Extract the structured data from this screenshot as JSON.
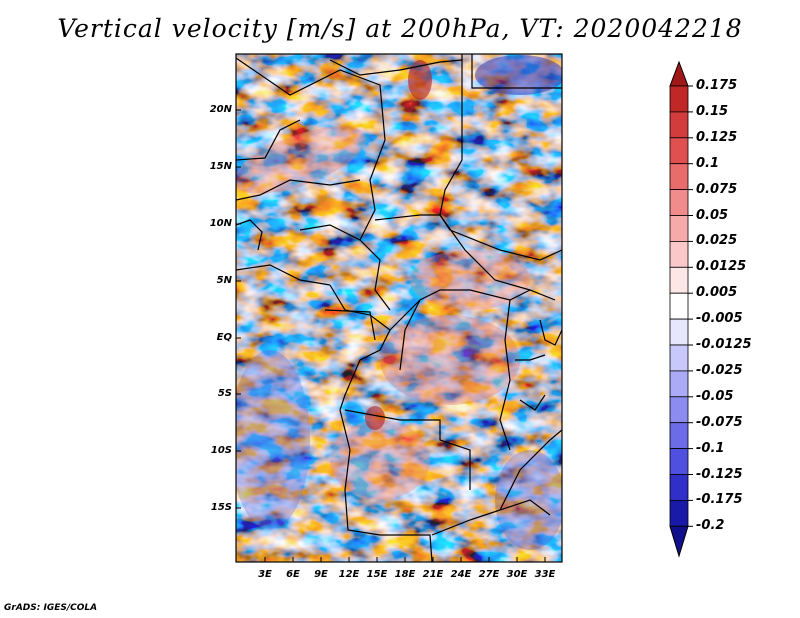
{
  "title": "Vertical velocity [m/s] at 200hPa, VT: 2020042218",
  "credit": "GrADS: IGES/COLA",
  "map": {
    "lat_labels": [
      "20N",
      "15N",
      "10N",
      "5N",
      "EQ",
      "5S",
      "10S",
      "15S"
    ],
    "lon_labels": [
      "3E",
      "6E",
      "9E",
      "12E",
      "15E",
      "18E",
      "21E",
      "24E",
      "27E",
      "30E",
      "33E"
    ]
  },
  "colorbar": {
    "levels": [
      "0.175",
      "0.15",
      "0.125",
      "0.1",
      "0.075",
      "0.05",
      "0.025",
      "0.0125",
      "0.005",
      "-0.005",
      "-0.0125",
      "-0.025",
      "-0.05",
      "-0.075",
      "-0.1",
      "-0.125",
      "-0.175",
      "-0.2"
    ],
    "colors": [
      "#a01818",
      "#c02828",
      "#d23c3c",
      "#e05050",
      "#e86c6c",
      "#f08c8c",
      "#f6aaaa",
      "#fac8c8",
      "#fde6e6",
      "#ffffff",
      "#e6e6fd",
      "#c8c8fa",
      "#aaaaf6",
      "#8c8cf0",
      "#6c6ce8",
      "#5050e0",
      "#3030c8",
      "#1a1aa8",
      "#10108c"
    ]
  }
}
